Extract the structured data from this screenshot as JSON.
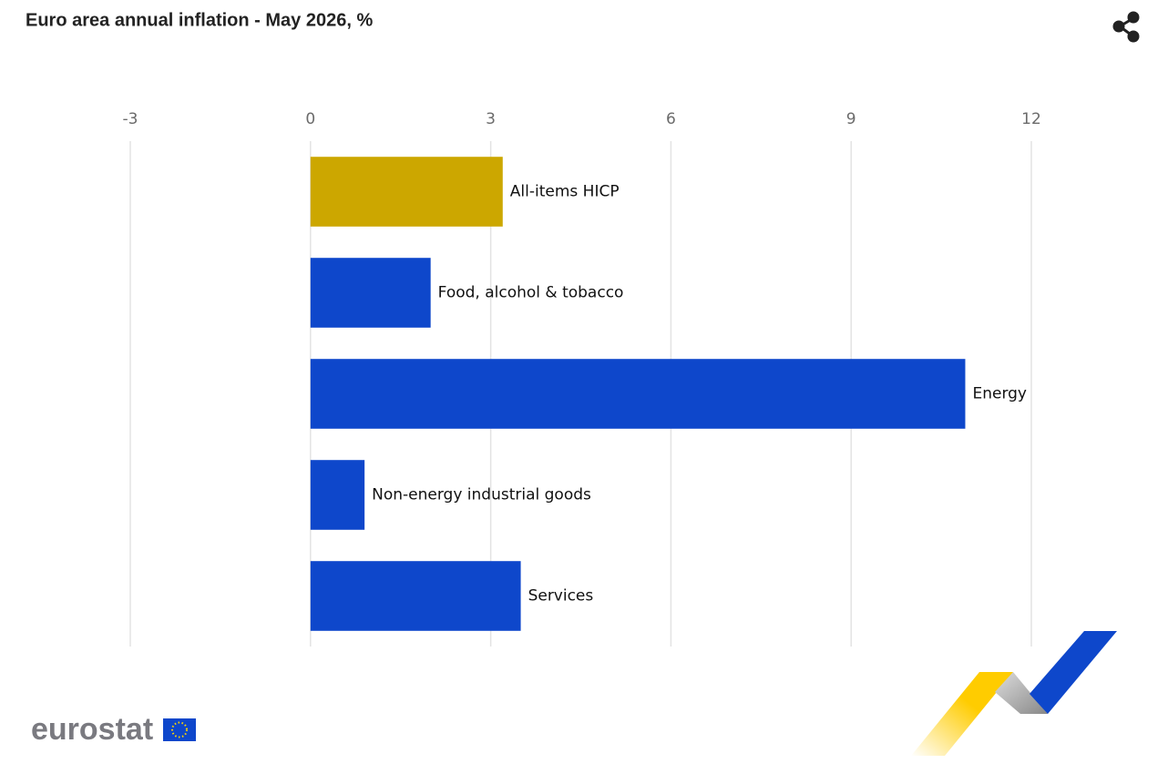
{
  "chart_data": {
    "type": "bar",
    "orientation": "horizontal",
    "title": "Euro area annual inflation - May 2026, %",
    "categories": [
      "All-items HICP",
      "Food, alcohol & tobacco",
      "Energy",
      "Non-energy industrial goods",
      "Services"
    ],
    "values": [
      3.2,
      2.0,
      10.9,
      0.9,
      3.5
    ],
    "colors": [
      "#cca700",
      "#0e47cb",
      "#0e47cb",
      "#0e47cb",
      "#0e47cb"
    ],
    "xlim": [
      -3,
      12
    ],
    "xticks": [
      -3,
      0,
      3,
      6,
      9,
      12
    ],
    "grid": true
  },
  "logo": "eurostat"
}
